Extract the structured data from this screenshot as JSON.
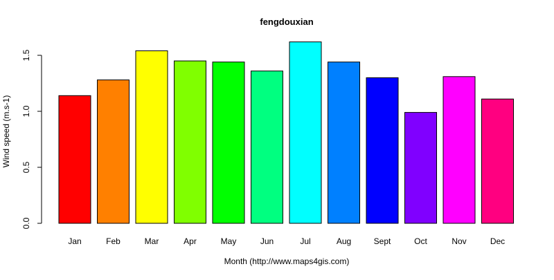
{
  "chart_data": {
    "type": "bar",
    "title": "fengdouxian",
    "xlabel": "Month (http://www.maps4gis.com)",
    "ylabel": "Wind speed (m.s-1)",
    "categories": [
      "Jan",
      "Feb",
      "Mar",
      "Apr",
      "May",
      "Jun",
      "Jul",
      "Aug",
      "Sept",
      "Oct",
      "Nov",
      "Dec"
    ],
    "values": [
      1.14,
      1.28,
      1.54,
      1.45,
      1.44,
      1.36,
      1.62,
      1.44,
      1.3,
      0.99,
      1.31,
      1.11
    ],
    "colors": [
      "#FF0000",
      "#FF8000",
      "#FFFF00",
      "#80FF00",
      "#00FF00",
      "#00FF80",
      "#00FFFF",
      "#0080FF",
      "#0000FF",
      "#8000FF",
      "#FF00FF",
      "#FF0080"
    ],
    "ylim": [
      0,
      1.62
    ],
    "yticks": [
      "0.0",
      "0.5",
      "1.0",
      "1.5"
    ],
    "grid": false,
    "legend": "none"
  }
}
